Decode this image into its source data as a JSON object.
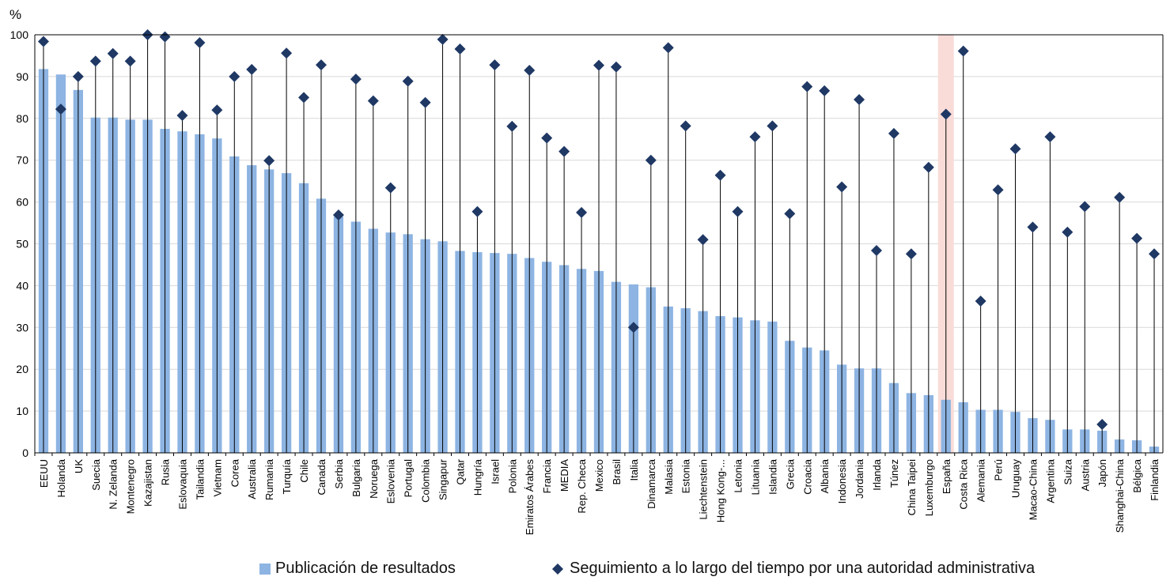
{
  "chart_data": {
    "type": "bar",
    "ylabel": "%",
    "ylim": [
      0,
      100
    ],
    "yticks": [
      0,
      10,
      20,
      30,
      40,
      50,
      60,
      70,
      80,
      90,
      100
    ],
    "grid": true,
    "legend_position": "bottom",
    "highlight_category": "España",
    "colors": {
      "bar": "#8db4e2",
      "marker": "#1f3864",
      "highlight": "#f9dcd8",
      "grid": "#d9d9d9"
    },
    "categories": [
      "EEUU",
      "Holanda",
      "UK",
      "Suecia",
      "N. Zelanda",
      "Montenegro",
      "Kazajistan",
      "Rusia",
      "Eslovaquia",
      "Tailandia",
      "Vietnam",
      "Corea",
      "Australia",
      "Rumania",
      "Turquía",
      "Chile",
      "Canada",
      "Serbia",
      "Bulgaria",
      "Noruega",
      "Eslovenia",
      "Portugal",
      "Colombia",
      "Singapur",
      "Qatar",
      "Hungría",
      "Israel",
      "Polonia",
      "Emiratos Árabes",
      "Francia",
      "MEDIA",
      "Rep. Checa",
      "Mexico",
      "Brasil",
      "Italia",
      "Dinamarca",
      "Malasia",
      "Estonia",
      "Liechtenstein",
      "Hong Kong-...",
      "Letonia",
      "Lituania",
      "Islandia",
      "Grecia",
      "Croacia",
      "Albania",
      "Indonesia",
      "Jordania",
      "Irlanda",
      "Túnez",
      "China Taipei",
      "Luxemburgo",
      "España",
      "Costa Rica",
      "Alemania",
      "Perú",
      "Uruguay",
      "Macao-China",
      "Argentina",
      "Suiza",
      "Austria",
      "Japón",
      "Shanghai-China",
      "Bélgica",
      "Finlandia"
    ],
    "series": [
      {
        "name": "Publicación de resultados",
        "values": [
          91.8,
          90.5,
          86.8,
          80.2,
          80.2,
          79.7,
          79.7,
          77.5,
          76.9,
          76.2,
          75.2,
          70.9,
          68.8,
          67.8,
          66.9,
          64.5,
          60.8,
          56.5,
          55.3,
          53.6,
          52.7,
          52.3,
          51.1,
          50.6,
          48.3,
          48.0,
          47.8,
          47.6,
          46.6,
          45.7,
          44.9,
          44.0,
          43.5,
          40.9,
          40.3,
          39.6,
          35.0,
          34.6,
          33.9,
          32.7,
          32.4,
          31.7,
          31.4,
          26.8,
          25.2,
          24.5,
          21.1,
          20.2,
          20.2,
          16.7,
          14.3,
          13.8,
          12.7,
          12.1,
          10.3,
          10.3,
          9.8,
          8.3,
          7.9,
          5.6,
          5.6,
          5.3,
          3.2,
          3.0,
          1.5
        ]
      },
      {
        "name": "Seguimiento a lo largo del tiempo por una autoridad administrativa",
        "values": [
          98.4,
          82.2,
          90.0,
          93.7,
          95.5,
          93.7,
          100.0,
          99.5,
          80.7,
          98.1,
          82.0,
          90.0,
          91.7,
          69.9,
          95.6,
          85.0,
          92.8,
          56.9,
          89.4,
          84.2,
          63.4,
          88.9,
          83.8,
          98.9,
          96.6,
          57.7,
          92.8,
          78.1,
          91.5,
          75.3,
          72.1,
          57.5,
          92.7,
          92.3,
          30.0,
          70.0,
          96.9,
          78.2,
          51.0,
          66.4,
          57.7,
          75.6,
          78.2,
          57.2,
          87.6,
          86.6,
          63.6,
          84.5,
          48.4,
          76.4,
          47.6,
          68.3,
          81.0,
          96.1,
          36.3,
          62.9,
          72.7,
          54.0,
          75.6,
          52.8,
          58.9,
          6.8,
          61.1,
          51.3,
          47.6
        ]
      }
    ]
  }
}
